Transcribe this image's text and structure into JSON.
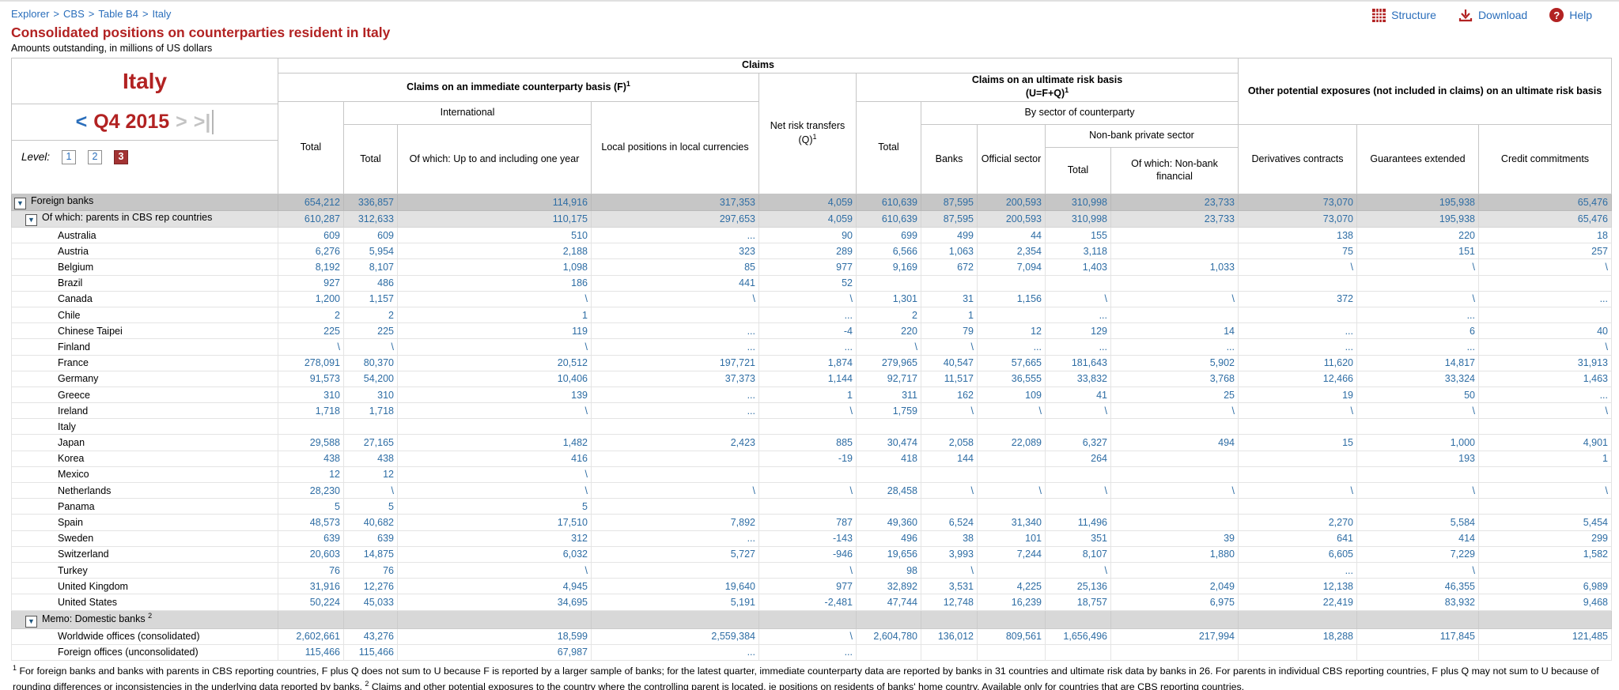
{
  "breadcrumb": {
    "separator": ">",
    "items": [
      "Explorer",
      "CBS",
      "Table B4",
      "Italy"
    ]
  },
  "toolbar": {
    "structure": "Structure",
    "download": "Download",
    "help": "Help",
    "help_glyph": "?"
  },
  "header": {
    "title": "Consolidated positions on counterparties resident in Italy",
    "subtitle": "Amounts outstanding, in millions of US dollars"
  },
  "panel": {
    "country": "Italy",
    "prev": "<",
    "period": "Q4 2015",
    "next": ">",
    "last": ">|",
    "level_label": "Level:",
    "levels": [
      "1",
      "2",
      "3"
    ],
    "active_level": "3"
  },
  "columns": {
    "claims": "Claims",
    "immediate": {
      "label": "Claims on an immediate counterparty basis (F)",
      "sup": "1"
    },
    "net_risk": {
      "line1": "Net risk transfers",
      "line2": "(Q)",
      "sup": "1"
    },
    "ultimate": {
      "line1": "Claims on an ultimate risk basis",
      "line2": "(U=F+Q)",
      "sup": "1"
    },
    "other_group": "Other potential exposures (not included in claims) on an ultimate risk basis",
    "total": "Total",
    "international": "International",
    "one_year": "Of which: Up to and including one year",
    "local": "Local positions in local currencies",
    "by_sector": "By sector of counterparty",
    "banks": "Banks",
    "official": "Official sector",
    "nonbank_private": "Non-bank private sector",
    "nonbank_financial": "Of which: Non-bank financial",
    "derivatives": "Derivatives contracts",
    "guarantees": "Guarantees extended",
    "credit": "Credit commitments"
  },
  "colors": {
    "accent_red": "#b22222",
    "link_blue": "#2a6ebb",
    "number_blue": "#2e6da4"
  },
  "table": {
    "rows": [
      {
        "label": "Foreign banks",
        "indent": 0,
        "icon": true,
        "style": "dark",
        "values": [
          "654,212",
          "336,857",
          "114,916",
          "317,353",
          "4,059",
          "610,639",
          "87,595",
          "200,593",
          "310,998",
          "23,733",
          "73,070",
          "195,938",
          "65,476"
        ]
      },
      {
        "label": "Of which: parents in CBS rep countries",
        "indent": 1,
        "icon": true,
        "style": "mid",
        "values": [
          "610,287",
          "312,633",
          "110,175",
          "297,653",
          "4,059",
          "610,639",
          "87,595",
          "200,593",
          "310,998",
          "23,733",
          "73,070",
          "195,938",
          "65,476"
        ]
      },
      {
        "label": "Australia",
        "indent": 2,
        "icon": false,
        "style": "plain",
        "values": [
          "609",
          "609",
          "510",
          "...",
          "90",
          "699",
          "499",
          "44",
          "155",
          "",
          "138",
          "220",
          "18"
        ]
      },
      {
        "label": "Austria",
        "indent": 2,
        "icon": false,
        "style": "plain",
        "values": [
          "6,276",
          "5,954",
          "2,188",
          "323",
          "289",
          "6,566",
          "1,063",
          "2,354",
          "3,118",
          "",
          "75",
          "151",
          "257"
        ]
      },
      {
        "label": "Belgium",
        "indent": 2,
        "icon": false,
        "style": "plain",
        "values": [
          "8,192",
          "8,107",
          "1,098",
          "85",
          "977",
          "9,169",
          "672",
          "7,094",
          "1,403",
          "1,033",
          "\\",
          "\\",
          "\\"
        ]
      },
      {
        "label": "Brazil",
        "indent": 2,
        "icon": false,
        "style": "plain",
        "values": [
          "927",
          "486",
          "186",
          "441",
          "52",
          "",
          "",
          "",
          "",
          "",
          "",
          "",
          ""
        ]
      },
      {
        "label": "Canada",
        "indent": 2,
        "icon": false,
        "style": "plain",
        "values": [
          "1,200",
          "1,157",
          "\\",
          "\\",
          "\\",
          "1,301",
          "31",
          "1,156",
          "\\",
          "\\",
          "372",
          "\\",
          "..."
        ]
      },
      {
        "label": "Chile",
        "indent": 2,
        "icon": false,
        "style": "plain",
        "values": [
          "2",
          "2",
          "1",
          "",
          "...",
          "2",
          "1",
          "",
          "...",
          "",
          "",
          "...",
          ""
        ]
      },
      {
        "label": "Chinese Taipei",
        "indent": 2,
        "icon": false,
        "style": "plain",
        "values": [
          "225",
          "225",
          "119",
          "...",
          "-4",
          "220",
          "79",
          "12",
          "129",
          "14",
          "...",
          "6",
          "40"
        ]
      },
      {
        "label": "Finland",
        "indent": 2,
        "icon": false,
        "style": "plain",
        "values": [
          "\\",
          "\\",
          "\\",
          "...",
          "...",
          "\\",
          "\\",
          "...",
          "...",
          "...",
          "...",
          "...",
          "\\"
        ]
      },
      {
        "label": "France",
        "indent": 2,
        "icon": false,
        "style": "plain",
        "values": [
          "278,091",
          "80,370",
          "20,512",
          "197,721",
          "1,874",
          "279,965",
          "40,547",
          "57,665",
          "181,643",
          "5,902",
          "11,620",
          "14,817",
          "31,913"
        ]
      },
      {
        "label": "Germany",
        "indent": 2,
        "icon": false,
        "style": "plain",
        "values": [
          "91,573",
          "54,200",
          "10,406",
          "37,373",
          "1,144",
          "92,717",
          "11,517",
          "36,555",
          "33,832",
          "3,768",
          "12,466",
          "33,324",
          "1,463"
        ]
      },
      {
        "label": "Greece",
        "indent": 2,
        "icon": false,
        "style": "plain",
        "values": [
          "310",
          "310",
          "139",
          "...",
          "1",
          "311",
          "162",
          "109",
          "41",
          "25",
          "19",
          "50",
          "..."
        ]
      },
      {
        "label": "Ireland",
        "indent": 2,
        "icon": false,
        "style": "plain",
        "values": [
          "1,718",
          "1,718",
          "\\",
          "...",
          "\\",
          "1,759",
          "\\",
          "\\",
          "\\",
          "\\",
          "\\",
          "\\",
          "\\"
        ]
      },
      {
        "label": "Italy",
        "indent": 2,
        "icon": false,
        "style": "plain",
        "values": [
          "",
          "",
          "",
          "",
          "",
          "",
          "",
          "",
          "",
          "",
          "",
          "",
          ""
        ]
      },
      {
        "label": "Japan",
        "indent": 2,
        "icon": false,
        "style": "plain",
        "values": [
          "29,588",
          "27,165",
          "1,482",
          "2,423",
          "885",
          "30,474",
          "2,058",
          "22,089",
          "6,327",
          "494",
          "15",
          "1,000",
          "4,901"
        ]
      },
      {
        "label": "Korea",
        "indent": 2,
        "icon": false,
        "style": "plain",
        "values": [
          "438",
          "438",
          "416",
          "",
          "-19",
          "418",
          "144",
          "",
          "264",
          "",
          "",
          "193",
          "1"
        ]
      },
      {
        "label": "Mexico",
        "indent": 2,
        "icon": false,
        "style": "plain",
        "values": [
          "12",
          "12",
          "\\",
          "",
          "",
          "",
          "",
          "",
          "",
          "",
          "",
          "",
          ""
        ]
      },
      {
        "label": "Netherlands",
        "indent": 2,
        "icon": false,
        "style": "plain",
        "values": [
          "28,230",
          "\\",
          "\\",
          "\\",
          "\\",
          "28,458",
          "\\",
          "\\",
          "\\",
          "\\",
          "\\",
          "\\",
          "\\"
        ]
      },
      {
        "label": "Panama",
        "indent": 2,
        "icon": false,
        "style": "plain",
        "values": [
          "5",
          "5",
          "5",
          "",
          "",
          "",
          "",
          "",
          "",
          "",
          "",
          "",
          ""
        ]
      },
      {
        "label": "Spain",
        "indent": 2,
        "icon": false,
        "style": "plain",
        "values": [
          "48,573",
          "40,682",
          "17,510",
          "7,892",
          "787",
          "49,360",
          "6,524",
          "31,340",
          "11,496",
          "",
          "2,270",
          "5,584",
          "5,454"
        ]
      },
      {
        "label": "Sweden",
        "indent": 2,
        "icon": false,
        "style": "plain",
        "values": [
          "639",
          "639",
          "312",
          "...",
          "-143",
          "496",
          "38",
          "101",
          "351",
          "39",
          "641",
          "414",
          "299"
        ]
      },
      {
        "label": "Switzerland",
        "indent": 2,
        "icon": false,
        "style": "plain",
        "values": [
          "20,603",
          "14,875",
          "6,032",
          "5,727",
          "-946",
          "19,656",
          "3,993",
          "7,244",
          "8,107",
          "1,880",
          "6,605",
          "7,229",
          "1,582"
        ]
      },
      {
        "label": "Turkey",
        "indent": 2,
        "icon": false,
        "style": "plain",
        "values": [
          "76",
          "76",
          "\\",
          "",
          "\\",
          "98",
          "\\",
          "",
          "\\",
          "",
          "...",
          "\\",
          ""
        ]
      },
      {
        "label": "United Kingdom",
        "indent": 2,
        "icon": false,
        "style": "plain",
        "values": [
          "31,916",
          "12,276",
          "4,945",
          "19,640",
          "977",
          "32,892",
          "3,531",
          "4,225",
          "25,136",
          "2,049",
          "12,138",
          "46,355",
          "6,989"
        ]
      },
      {
        "label": "United States",
        "indent": 2,
        "icon": false,
        "style": "plain",
        "values": [
          "50,224",
          "45,033",
          "34,695",
          "5,191",
          "-2,481",
          "47,744",
          "12,748",
          "16,239",
          "18,757",
          "6,975",
          "22,419",
          "83,932",
          "9,468"
        ]
      },
      {
        "label": "Memo: Domestic banks ",
        "sup": "2",
        "indent": 1,
        "icon": true,
        "style": "memo",
        "values": [
          "",
          "",
          "",
          "",
          "",
          "",
          "",
          "",
          "",
          "",
          "",
          "",
          ""
        ]
      },
      {
        "label": "Worldwide offices (consolidated)",
        "indent": 2,
        "icon": false,
        "style": "plain",
        "values": [
          "2,602,661",
          "43,276",
          "18,599",
          "2,559,384",
          "\\",
          "2,604,780",
          "136,012",
          "809,561",
          "1,656,496",
          "217,994",
          "18,288",
          "117,845",
          "121,485"
        ]
      },
      {
        "label": "Foreign offices (unconsolidated)",
        "indent": 2,
        "icon": false,
        "style": "plain",
        "values": [
          "115,466",
          "115,466",
          "67,987",
          "...",
          "...",
          "",
          "",
          "",
          "",
          "",
          "",
          "",
          ""
        ]
      }
    ]
  },
  "footnotes": [
    {
      "sup": "1",
      "text": " For foreign banks and banks with parents in CBS reporting countries, F plus Q does not sum to U because F is reported by a larger sample of banks; for the latest quarter, immediate counterparty data are reported by banks in 31 countries and ultimate risk data by banks in 26. For parents in individual CBS reporting countries, F plus Q may not sum to U because of rounding differences or inconsistencies in the underlying data reported by banks. "
    },
    {
      "sup": "2",
      "text": " Claims and other potential exposures to the country where the controlling parent is located, ie positions on residents of banks' home country. Available only for countries that are CBS reporting countries."
    }
  ]
}
